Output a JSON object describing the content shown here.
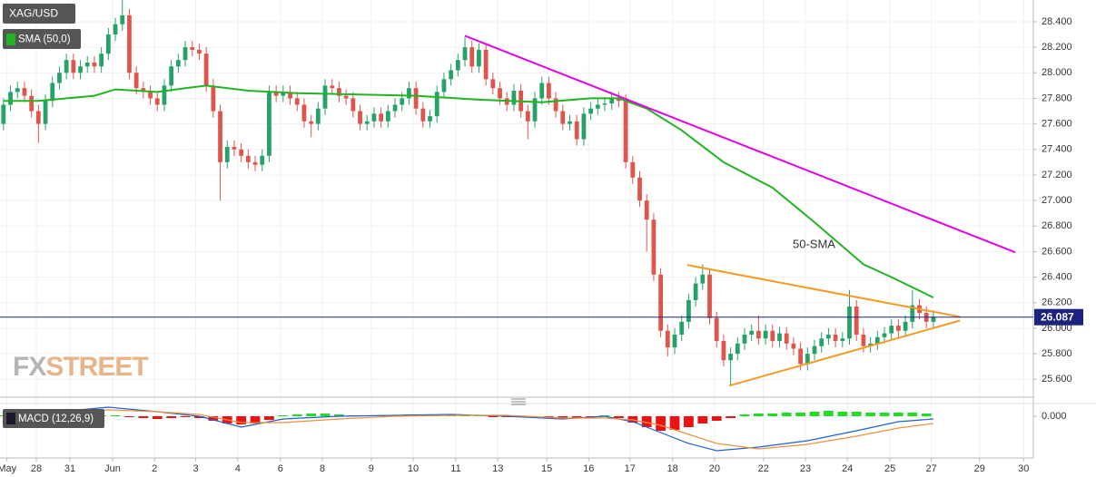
{
  "chart_data": {
    "type": "candlestick",
    "title": "XAG/USD",
    "xlim": [
      -0.5,
      147.3
    ],
    "xticks": [
      {
        "value": 0.5,
        "label": "May"
      },
      {
        "value": 4.7,
        "label": "28"
      },
      {
        "value": 9.5,
        "label": "31"
      },
      {
        "value": 15.6,
        "label": "Jun"
      },
      {
        "value": 21.6,
        "label": "2"
      },
      {
        "value": 27.5,
        "label": "3"
      },
      {
        "value": 33.5,
        "label": "4"
      },
      {
        "value": 39.6,
        "label": "6"
      },
      {
        "value": 45.6,
        "label": "8"
      },
      {
        "value": 52.6,
        "label": "9"
      },
      {
        "value": 58.6,
        "label": "10"
      },
      {
        "value": 64.7,
        "label": "11"
      },
      {
        "value": 70.7,
        "label": "13"
      },
      {
        "value": 77.7,
        "label": "15"
      },
      {
        "value": 83.7,
        "label": "16"
      },
      {
        "value": 89.6,
        "label": "17"
      },
      {
        "value": 95.7,
        "label": "18"
      },
      {
        "value": 101.7,
        "label": "20"
      },
      {
        "value": 108.7,
        "label": "22"
      },
      {
        "value": 114.7,
        "label": "23"
      },
      {
        "value": 120.7,
        "label": "24"
      },
      {
        "value": 126.8,
        "label": "25"
      },
      {
        "value": 132.7,
        "label": "27"
      },
      {
        "value": 139.6,
        "label": "29"
      },
      {
        "value": 145.9,
        "label": "30"
      }
    ],
    "ylim": [
      25.46,
      28.57
    ],
    "yticks": [
      {
        "value": 25.6,
        "label": "25.600"
      },
      {
        "value": 25.8,
        "label": "25.800"
      },
      {
        "value": 26.0,
        "label": "26.000"
      },
      {
        "value": 26.2,
        "label": "26.200"
      },
      {
        "value": 26.4,
        "label": "26.400"
      },
      {
        "value": 26.6,
        "label": "26.600"
      },
      {
        "value": 26.8,
        "label": "26.800"
      },
      {
        "value": 27.0,
        "label": "27.000"
      },
      {
        "value": 27.2,
        "label": "27.200"
      },
      {
        "value": 27.4,
        "label": "27.400"
      },
      {
        "value": 27.6,
        "label": "27.600"
      },
      {
        "value": 27.8,
        "label": "27.800"
      },
      {
        "value": 28.0,
        "label": "28.000"
      },
      {
        "value": 28.2,
        "label": "28.200"
      },
      {
        "value": 28.4,
        "label": "28.400"
      }
    ],
    "grid": true,
    "up_color": "#26a269",
    "down_color": "#e0554b",
    "open": [
      27.6,
      27.75,
      27.85,
      27.88,
      27.82,
      27.7,
      27.6,
      27.78,
      27.92,
      28.0,
      28.1,
      28.0,
      28.05,
      28.08,
      28.05,
      28.15,
      28.3,
      28.38,
      28.45,
      28.0,
      27.88,
      27.85,
      27.8,
      27.75,
      27.9,
      28.05,
      28.1,
      28.2,
      28.18,
      28.15,
      27.9,
      27.7,
      27.3,
      27.42,
      27.4,
      27.35,
      27.3,
      27.28,
      27.35,
      27.85,
      27.82,
      27.85,
      27.8,
      27.75,
      27.62,
      27.6,
      27.72,
      27.9,
      27.88,
      27.82,
      27.8,
      27.7,
      27.6,
      27.62,
      27.68,
      27.62,
      27.7,
      27.75,
      27.8,
      27.88,
      27.72,
      27.62,
      27.66,
      27.85,
      27.95,
      28.02,
      28.1,
      28.2,
      28.05,
      28.18,
      27.95,
      27.88,
      27.8,
      27.75,
      27.86,
      27.7,
      27.62,
      27.8,
      27.92,
      27.8,
      27.7,
      27.6,
      27.62,
      27.48,
      27.68,
      27.72,
      27.75,
      27.76,
      27.8,
      27.78,
      27.3,
      27.18,
      27.0,
      26.85,
      26.42,
      25.98,
      25.85,
      25.95,
      26.05,
      26.22,
      26.35,
      26.42,
      26.08,
      25.9,
      25.75,
      25.8,
      25.88,
      25.95,
      25.98,
      25.92,
      25.98,
      25.9,
      25.96,
      25.88,
      25.84,
      25.72,
      25.8,
      25.86,
      25.92,
      25.95,
      25.9,
      25.92,
      26.17,
      25.95,
      25.86,
      25.88,
      25.93,
      25.96,
      26.02,
      25.98,
      26.05,
      26.18,
      26.12,
      26.05
    ],
    "high": [
      27.8,
      27.9,
      27.93,
      27.93,
      27.87,
      27.75,
      27.83,
      27.97,
      28.05,
      28.15,
      28.15,
      28.1,
      28.13,
      28.13,
      28.2,
      28.35,
      28.43,
      28.57,
      28.5,
      28.05,
      27.93,
      27.9,
      27.85,
      27.95,
      28.1,
      28.15,
      28.25,
      28.25,
      28.23,
      28.2,
      27.95,
      27.75,
      27.47,
      27.47,
      27.45,
      27.4,
      27.35,
      27.4,
      27.9,
      27.9,
      27.9,
      27.9,
      27.85,
      27.8,
      27.67,
      27.77,
      27.95,
      27.95,
      27.93,
      27.87,
      27.85,
      27.75,
      27.67,
      27.73,
      27.73,
      27.75,
      27.8,
      27.85,
      27.93,
      27.93,
      27.77,
      27.71,
      27.9,
      28.0,
      28.07,
      28.15,
      28.28,
      28.25,
      28.23,
      28.23,
      28.0,
      27.93,
      27.85,
      27.91,
      27.91,
      27.75,
      27.85,
      27.97,
      27.97,
      27.85,
      27.75,
      27.67,
      27.67,
      27.73,
      27.77,
      27.8,
      27.81,
      27.85,
      27.85,
      27.83,
      27.35,
      27.23,
      27.05,
      26.9,
      26.47,
      26.03,
      26.0,
      26.1,
      26.27,
      26.4,
      26.5,
      26.47,
      26.13,
      25.95,
      25.85,
      25.93,
      26.0,
      26.03,
      26.1,
      26.03,
      26.03,
      26.01,
      26.01,
      25.93,
      25.89,
      25.85,
      25.91,
      25.97,
      26.0,
      26.0,
      25.97,
      26.3,
      26.22,
      26.0,
      25.93,
      25.98,
      26.01,
      26.07,
      26.07,
      26.1,
      26.3,
      26.23,
      26.17,
      26.14
    ],
    "low": [
      27.55,
      27.7,
      27.8,
      27.77,
      27.65,
      27.45,
      27.55,
      27.73,
      27.87,
      27.95,
      27.95,
      27.95,
      28.0,
      28.0,
      28.0,
      28.1,
      28.25,
      28.33,
      27.95,
      27.83,
      27.8,
      27.75,
      27.7,
      27.7,
      27.85,
      28.0,
      28.05,
      28.13,
      28.1,
      27.85,
      27.65,
      27.0,
      27.25,
      27.35,
      27.3,
      27.25,
      27.23,
      27.23,
      27.3,
      27.77,
      27.77,
      27.75,
      27.7,
      27.57,
      27.5,
      27.55,
      27.67,
      27.83,
      27.77,
      27.75,
      27.65,
      27.55,
      27.55,
      27.57,
      27.57,
      27.57,
      27.65,
      27.7,
      27.75,
      27.67,
      27.57,
      27.57,
      27.61,
      27.8,
      27.9,
      27.97,
      28.05,
      28.0,
      28.0,
      27.9,
      27.83,
      27.75,
      27.7,
      27.7,
      27.65,
      27.48,
      27.57,
      27.75,
      27.75,
      27.65,
      27.55,
      27.55,
      27.43,
      27.43,
      27.63,
      27.67,
      27.7,
      27.71,
      27.73,
      27.25,
      27.13,
      26.95,
      26.6,
      26.37,
      25.93,
      25.78,
      25.8,
      25.9,
      26.0,
      26.17,
      26.3,
      26.03,
      25.85,
      25.7,
      25.55,
      25.75,
      25.83,
      25.9,
      25.87,
      25.87,
      25.85,
      25.85,
      25.83,
      25.79,
      25.67,
      25.67,
      25.75,
      25.81,
      25.87,
      25.85,
      25.85,
      25.87,
      25.9,
      25.81,
      25.81,
      25.83,
      25.88,
      25.91,
      25.93,
      25.93,
      26.0,
      26.07,
      26.0,
      26.0
    ],
    "close": [
      27.75,
      27.85,
      27.88,
      27.82,
      27.7,
      27.6,
      27.78,
      27.92,
      28.0,
      28.1,
      28.0,
      28.05,
      28.08,
      28.05,
      28.15,
      28.3,
      28.38,
      28.45,
      28.0,
      27.88,
      27.85,
      27.8,
      27.75,
      27.9,
      28.05,
      28.1,
      28.2,
      28.18,
      28.15,
      27.9,
      27.7,
      27.3,
      27.42,
      27.4,
      27.35,
      27.3,
      27.28,
      27.35,
      27.85,
      27.82,
      27.85,
      27.8,
      27.75,
      27.62,
      27.6,
      27.72,
      27.9,
      27.88,
      27.82,
      27.8,
      27.7,
      27.6,
      27.62,
      27.68,
      27.62,
      27.7,
      27.75,
      27.8,
      27.88,
      27.72,
      27.62,
      27.66,
      27.85,
      27.95,
      28.02,
      28.1,
      28.2,
      28.05,
      28.18,
      27.95,
      27.88,
      27.8,
      27.75,
      27.86,
      27.7,
      27.62,
      27.8,
      27.92,
      27.8,
      27.7,
      27.6,
      27.62,
      27.48,
      27.68,
      27.72,
      27.75,
      27.76,
      27.8,
      27.78,
      27.3,
      27.18,
      27.0,
      26.85,
      26.42,
      25.98,
      25.85,
      25.95,
      26.05,
      26.22,
      26.35,
      26.42,
      26.08,
      25.9,
      25.75,
      25.8,
      25.88,
      25.95,
      25.98,
      25.92,
      25.98,
      25.9,
      25.96,
      25.88,
      25.84,
      25.72,
      25.8,
      25.86,
      25.92,
      25.95,
      25.9,
      25.92,
      26.17,
      25.95,
      25.86,
      25.88,
      25.93,
      25.96,
      26.02,
      25.98,
      26.05,
      26.18,
      26.12,
      26.05,
      26.09
    ],
    "overlays": [
      {
        "name": "SMA (50,0)",
        "color": "#22b422",
        "x": [
          0,
          5,
          13,
          16,
          22,
          26,
          29,
          35,
          42,
          51,
          59,
          68,
          77,
          84,
          88,
          92,
          97,
          103,
          110,
          116,
          123,
          127,
          133
        ],
        "values": [
          27.78,
          27.78,
          27.82,
          27.87,
          27.85,
          27.88,
          27.9,
          27.86,
          27.84,
          27.83,
          27.82,
          27.79,
          27.77,
          27.8,
          27.8,
          27.72,
          27.55,
          27.3,
          27.1,
          26.83,
          26.5,
          26.4,
          26.24
        ]
      }
    ],
    "trendlines": [
      {
        "color": "#e600e6",
        "x": [
          66,
          144.7
        ],
        "values": [
          28.29,
          26.595
        ]
      },
      {
        "color": "#f59a23",
        "x": [
          97.8,
          136.8
        ],
        "values": [
          26.495,
          26.09
        ]
      },
      {
        "color": "#f59a23",
        "x": [
          103.8,
          136.8
        ],
        "values": [
          25.55,
          26.06
        ]
      }
    ],
    "annotation": {
      "text": "50-SMA",
      "color": "#22b422"
    },
    "last_price": 26.087,
    "last_price_color": "#1a237e",
    "watermark": [
      "FX",
      "STREET"
    ],
    "macd": {
      "label": "MACD (12,26,9)",
      "ylim": [
        -0.46,
        0.12
      ],
      "yticks": [
        {
          "value": 0,
          "label": "0.000"
        }
      ],
      "lines": [
        {
          "color": "#1f5fd6",
          "x": [
            0,
            8,
            15,
            22,
            28,
            34,
            40,
            48,
            56,
            64,
            72,
            80,
            86,
            90,
            94,
            98,
            102,
            108,
            115,
            122,
            128,
            133
          ],
          "values": [
            0.0,
            0.05,
            0.1,
            0.05,
            0.0,
            -0.12,
            -0.03,
            0.0,
            0.01,
            0.02,
            0.0,
            -0.03,
            0.0,
            -0.06,
            -0.18,
            -0.3,
            -0.38,
            -0.34,
            -0.27,
            -0.16,
            -0.06,
            -0.03
          ]
        },
        {
          "color": "#f0903c",
          "x": [
            0,
            8,
            15,
            22,
            28,
            34,
            40,
            48,
            56,
            64,
            72,
            80,
            86,
            90,
            94,
            98,
            102,
            108,
            115,
            122,
            128,
            133
          ],
          "values": [
            0.0,
            0.03,
            0.07,
            0.05,
            0.02,
            -0.07,
            -0.07,
            -0.03,
            0.0,
            0.01,
            0.01,
            -0.02,
            -0.02,
            -0.04,
            -0.1,
            -0.2,
            -0.3,
            -0.36,
            -0.31,
            -0.22,
            -0.13,
            -0.08
          ]
        }
      ],
      "histogram": {
        "up_color": "#22dd22",
        "down_color": "#ee1111",
        "x": [
          0,
          2,
          4,
          6,
          8,
          10,
          12,
          14,
          16,
          18,
          20,
          22,
          24,
          26,
          28,
          30,
          32,
          34,
          36,
          38,
          40,
          42,
          44,
          46,
          48,
          50,
          52,
          54,
          56,
          58,
          60,
          62,
          64,
          66,
          68,
          70,
          72,
          74,
          76,
          78,
          80,
          82,
          84,
          86,
          88,
          90,
          92,
          94,
          96,
          98,
          100,
          102,
          104,
          106,
          108,
          110,
          112,
          114,
          116,
          118,
          120,
          122,
          124,
          126,
          128,
          130,
          132
        ],
        "values": [
          0.01,
          0.01,
          0.02,
          0.02,
          0.02,
          0.01,
          0.01,
          0.01,
          0.01,
          -0.01,
          -0.02,
          -0.03,
          -0.02,
          -0.01,
          -0.02,
          -0.05,
          -0.08,
          -0.09,
          -0.08,
          -0.04,
          0.01,
          0.02,
          0.03,
          0.03,
          0.02,
          0.01,
          0.01,
          0.01,
          0.01,
          0.02,
          0.01,
          0.01,
          0.02,
          0.02,
          0.01,
          -0.01,
          -0.01,
          -0.01,
          -0.01,
          -0.01,
          -0.02,
          -0.02,
          -0.01,
          0.01,
          -0.02,
          -0.07,
          -0.12,
          -0.16,
          -0.15,
          -0.12,
          -0.08,
          -0.05,
          -0.02,
          0.02,
          0.03,
          0.03,
          0.04,
          0.04,
          0.05,
          0.06,
          0.05,
          0.05,
          0.04,
          0.04,
          0.04,
          0.04,
          0.03
        ]
      }
    }
  }
}
